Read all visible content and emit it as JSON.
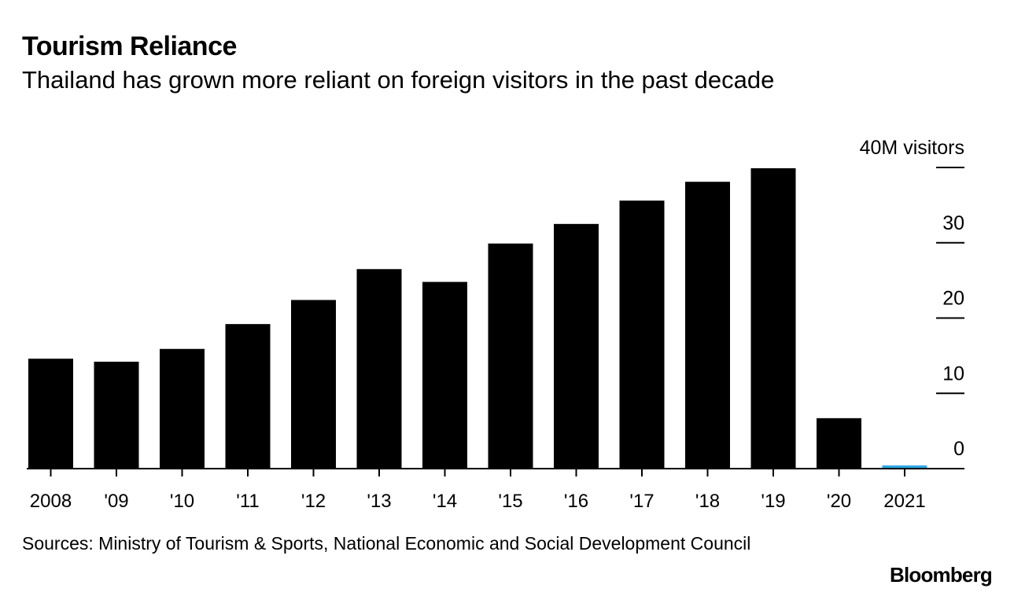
{
  "chart_data": {
    "type": "bar",
    "title": "Tourism Reliance",
    "subtitle": "Thailand has grown more reliant on foreign visitors in the past decade",
    "categories": [
      "2008",
      "'09",
      "'10",
      "'11",
      "'12",
      "'13",
      "'14",
      "'15",
      "'16",
      "'17",
      "'18",
      "'19",
      "'20",
      "2021"
    ],
    "values": [
      14.6,
      14.2,
      15.9,
      19.2,
      22.4,
      26.5,
      24.8,
      29.9,
      32.5,
      35.6,
      38.1,
      39.9,
      6.7,
      0.43
    ],
    "highlight_index": 13,
    "ylim": [
      0,
      40
    ],
    "yticks": [
      0,
      10,
      20,
      30,
      40
    ],
    "ytick_labels": [
      "0",
      "10",
      "20",
      "30",
      "40M visitors"
    ],
    "axis_position": "right",
    "xlabel": "",
    "ylabel": "",
    "grid": false
  },
  "colors": {
    "bar": "#000000",
    "highlight": "#2fa8e8"
  },
  "footer": {
    "source": "Sources: Ministry of Tourism & Sports, National Economic and Social Development Council",
    "brand": "Bloomberg"
  }
}
